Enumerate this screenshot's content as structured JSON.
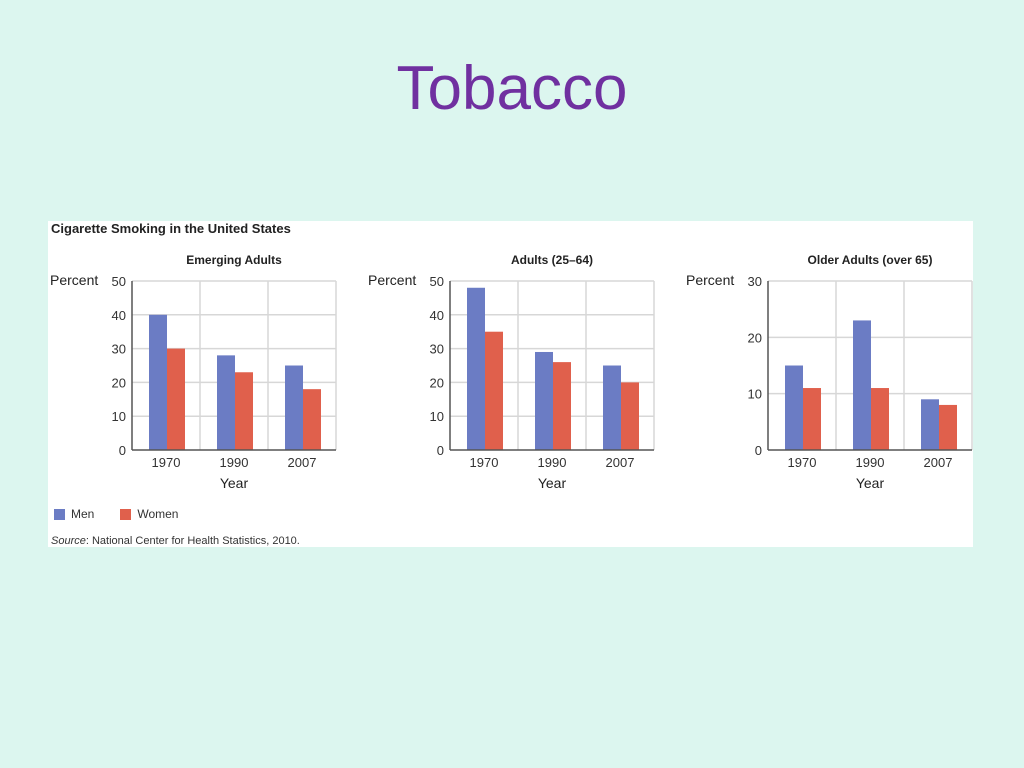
{
  "slide": {
    "title": "Tobacco"
  },
  "figure": {
    "title": "Cigarette Smoking in the United States",
    "source_label": "Source",
    "source_text": ": National Center for Health Statistics, 2010."
  },
  "colors": {
    "men": "#6b7cc4",
    "women": "#e0604c",
    "grid": "#d7d7d7",
    "axis": "#555555"
  },
  "chart_data": [
    {
      "type": "bar",
      "title": "Emerging Adults",
      "ylabel": "Percent",
      "xlabel": "Year",
      "categories": [
        "1970",
        "1990",
        "2007"
      ],
      "ylim": [
        0,
        50
      ],
      "yticks": [
        0,
        10,
        20,
        30,
        40,
        50
      ],
      "series": [
        {
          "name": "Men",
          "values": [
            40,
            28,
            25
          ]
        },
        {
          "name": "Women",
          "values": [
            30,
            23,
            18
          ]
        }
      ]
    },
    {
      "type": "bar",
      "title": "Adults (25–64)",
      "ylabel": "Percent",
      "xlabel": "Year",
      "categories": [
        "1970",
        "1990",
        "2007"
      ],
      "ylim": [
        0,
        50
      ],
      "yticks": [
        0,
        10,
        20,
        30,
        40,
        50
      ],
      "series": [
        {
          "name": "Men",
          "values": [
            48,
            29,
            25
          ]
        },
        {
          "name": "Women",
          "values": [
            35,
            26,
            20
          ]
        }
      ]
    },
    {
      "type": "bar",
      "title": "Older Adults (over 65)",
      "ylabel": "Percent",
      "xlabel": "Year",
      "categories": [
        "1970",
        "1990",
        "2007"
      ],
      "ylim": [
        0,
        30
      ],
      "yticks": [
        0,
        10,
        20,
        30
      ],
      "series": [
        {
          "name": "Men",
          "values": [
            15,
            23,
            9
          ]
        },
        {
          "name": "Women",
          "values": [
            11,
            11,
            8
          ]
        }
      ]
    }
  ],
  "legend": {
    "items": [
      "Men",
      "Women"
    ]
  }
}
